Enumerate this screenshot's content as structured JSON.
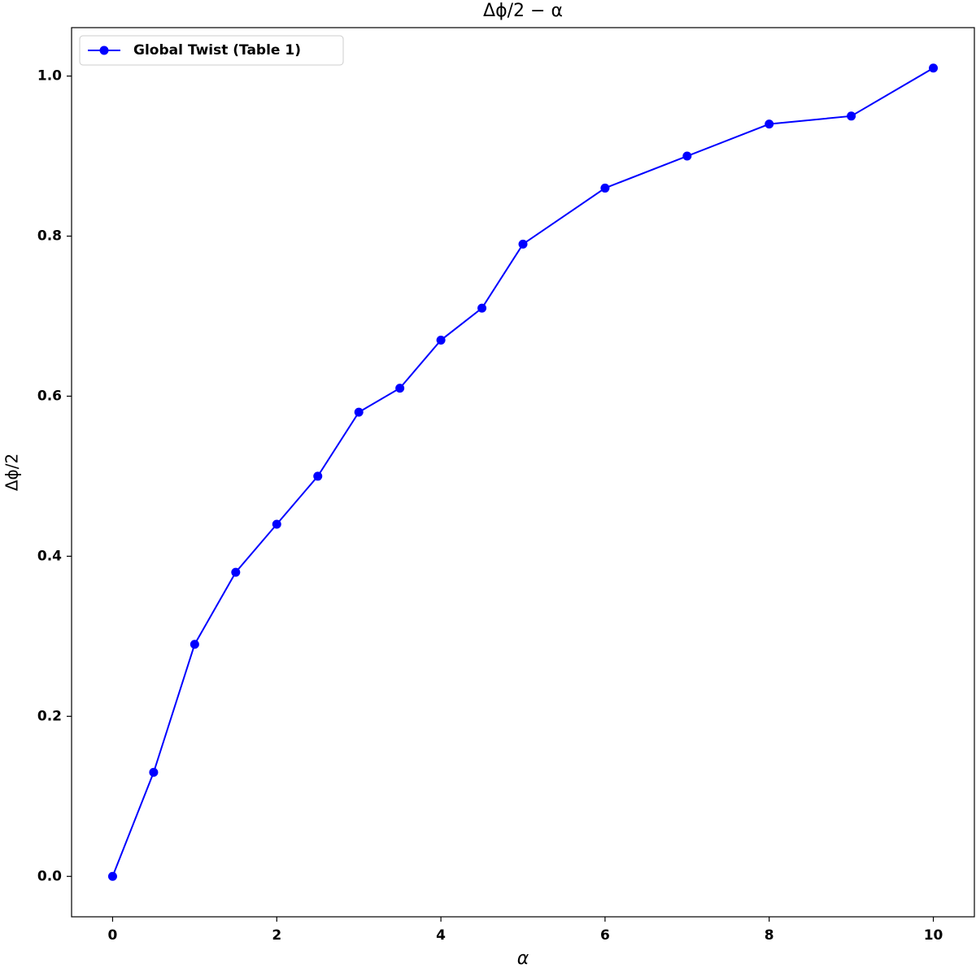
{
  "chart_data": {
    "type": "line",
    "title": "Δϕ/2 − α",
    "x_label": "α",
    "y_label": "Δϕ/2",
    "x": [
      0,
      0.5,
      1,
      1.5,
      2,
      2.5,
      3,
      3.5,
      4,
      4.5,
      5,
      6,
      7,
      8,
      9,
      10
    ],
    "series": [
      {
        "name": "Global Twist (Table 1)",
        "color": "#0000ff",
        "values": [
          0,
          0.13,
          0.29,
          0.38,
          0.44,
          0.5,
          0.58,
          0.61,
          0.67,
          0.71,
          0.79,
          0.86,
          0.9,
          0.94,
          0.95,
          1.01
        ]
      }
    ],
    "xlim": [
      -0.5,
      10.5
    ],
    "xticks": [
      0,
      2,
      4,
      6,
      8,
      10
    ],
    "ylim": [
      -0.0505,
      1.0605
    ],
    "yticks": [
      {
        "value": 0,
        "label": "0.0"
      },
      0.2,
      0.4,
      0.6,
      0.8,
      {
        "value": 1,
        "label": "1.0"
      }
    ],
    "legend": "upper left",
    "grid": false
  }
}
